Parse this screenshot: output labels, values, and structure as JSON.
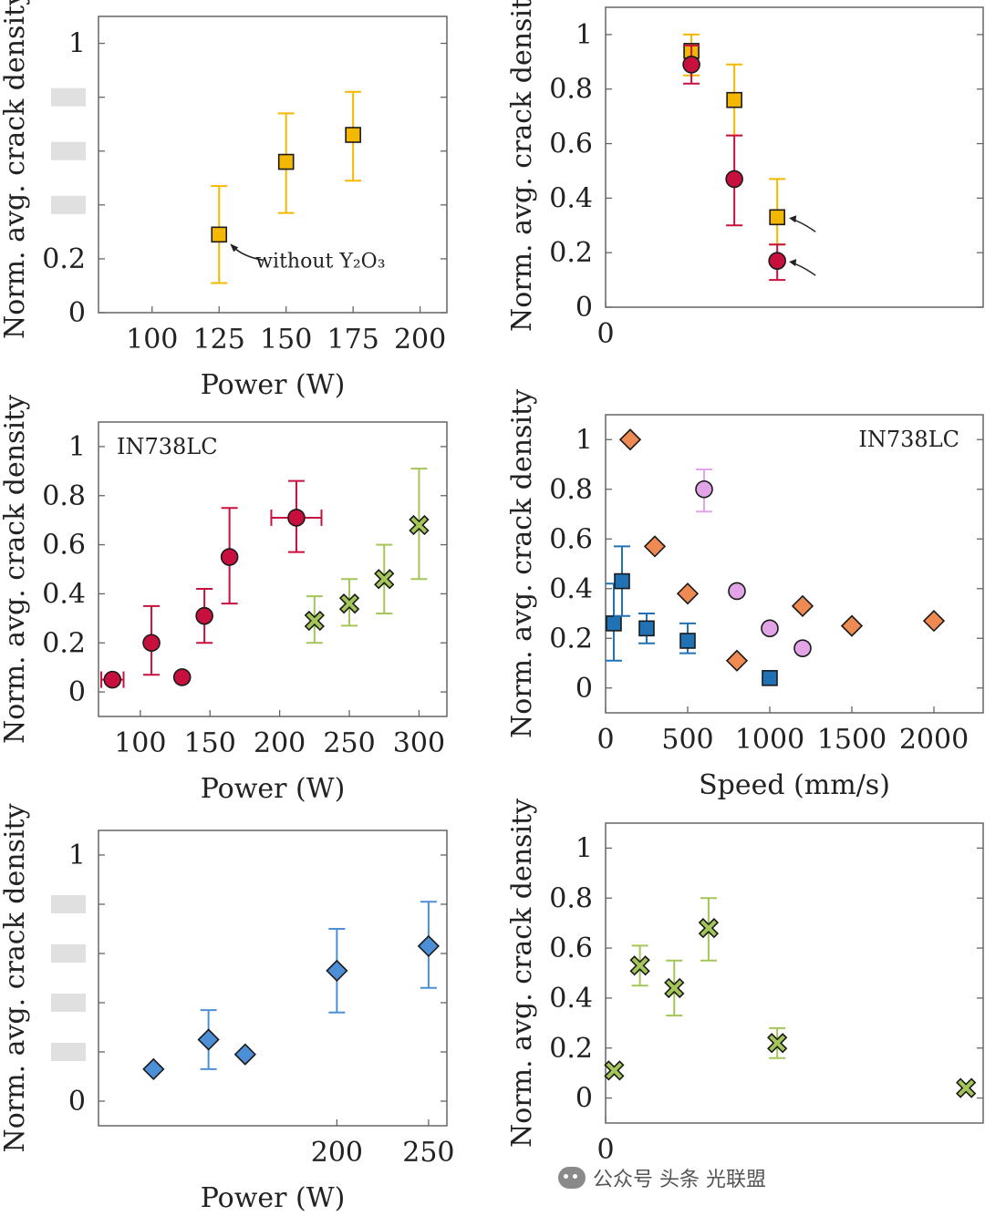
{
  "chart_data": [
    {
      "type": "scatter",
      "ylabel": "Norm. avg. crack density",
      "xlabel": "Power (W)",
      "xticks": [
        "100",
        "125",
        "150",
        "175",
        "200"
      ],
      "yticks": [
        "0",
        "0.2",
        "",
        "",
        "",
        "1"
      ],
      "xlim": [
        80,
        210
      ],
      "ylim": [
        0,
        1.1
      ],
      "annotation": "without Y₂O₃",
      "series": [
        {
          "marker": "square",
          "color": "#f5b800",
          "x": [
            125,
            150,
            175
          ],
          "y": [
            0.29,
            0.56,
            0.66
          ],
          "err": [
            [
              0.11,
              0.47
            ],
            [
              0.37,
              0.74
            ],
            [
              0.49,
              0.82
            ]
          ]
        }
      ]
    },
    {
      "type": "scatter",
      "ylabel": "Norm. avg. crack density",
      "xlabel": "",
      "xticks": [
        "0"
      ],
      "yticks": [
        "0",
        "0.2",
        "0.4",
        "0.6",
        "0.8",
        "1"
      ],
      "xlim": [
        0,
        2200
      ],
      "ylim": [
        0,
        1.1
      ],
      "series": [
        {
          "marker": "square",
          "color": "#f5b800",
          "x": [
            500,
            750,
            1000
          ],
          "y": [
            0.94,
            0.76,
            0.33
          ],
          "err": [
            [
              0.85,
              1.0
            ],
            [
              0.63,
              0.89
            ],
            [
              0.23,
              0.47
            ]
          ]
        },
        {
          "marker": "circle",
          "color": "#c8103e",
          "x": [
            500,
            750,
            1000
          ],
          "y": [
            0.89,
            0.47,
            0.17
          ],
          "err": [
            [
              0.82,
              0.96
            ],
            [
              0.3,
              0.63
            ],
            [
              0.1,
              0.23
            ]
          ]
        }
      ]
    },
    {
      "type": "scatter",
      "ylabel": "Norm. avg. crack density",
      "xlabel": "Power (W)",
      "label": "IN738LC",
      "xticks": [
        "100",
        "150",
        "200",
        "250",
        "300"
      ],
      "yticks": [
        "0",
        "0.2",
        "0.4",
        "0.6",
        "0.8",
        "1"
      ],
      "xlim": [
        70,
        320
      ],
      "ylim": [
        -0.1,
        1.1
      ],
      "series": [
        {
          "marker": "circle",
          "color": "#c8103e",
          "x": [
            80,
            108,
            130,
            146,
            164,
            212
          ],
          "y": [
            0.05,
            0.2,
            0.06,
            0.31,
            0.55,
            0.71
          ],
          "err": [
            [
              0.05,
              0.05
            ],
            [
              0.07,
              0.35
            ],
            [
              0.06,
              0.06
            ],
            [
              0.2,
              0.42
            ],
            [
              0.36,
              0.75
            ],
            [
              0.57,
              0.86
            ]
          ],
          "xerr": [
            [
              72,
              88
            ],
            null,
            null,
            null,
            null,
            [
              194,
              230
            ]
          ]
        },
        {
          "marker": "cross",
          "color": "#a4c659",
          "x": [
            225,
            250,
            275,
            300
          ],
          "y": [
            0.29,
            0.36,
            0.46,
            0.68
          ],
          "err": [
            [
              0.2,
              0.39
            ],
            [
              0.27,
              0.46
            ],
            [
              0.32,
              0.6
            ],
            [
              0.46,
              0.91
            ]
          ]
        }
      ]
    },
    {
      "type": "scatter",
      "ylabel": "Norm. avg. crack density",
      "xlabel": "Speed (mm/s)",
      "label": "IN738LC",
      "xticks": [
        "0",
        "500",
        "1000",
        "1500",
        "2000"
      ],
      "yticks": [
        "0",
        "0.2",
        "0.4",
        "0.6",
        "0.8",
        "1"
      ],
      "xlim": [
        0,
        2300
      ],
      "ylim": [
        -0.1,
        1.1
      ],
      "series": [
        {
          "marker": "diamond",
          "color": "#ef8a52",
          "x": [
            150,
            300,
            500,
            800,
            1200,
            1500,
            2000
          ],
          "y": [
            1.0,
            0.57,
            0.38,
            0.11,
            0.33,
            0.25,
            0.27
          ]
        },
        {
          "marker": "circle",
          "color": "#e2a3e7",
          "x": [
            600,
            800,
            1000,
            1200
          ],
          "y": [
            0.8,
            0.39,
            0.24,
            0.16
          ],
          "err": [
            [
              0.71,
              0.88
            ],
            null,
            null,
            null
          ]
        },
        {
          "marker": "square",
          "color": "#2171b5",
          "x": [
            50,
            100,
            250,
            500,
            1000
          ],
          "y": [
            0.26,
            0.43,
            0.24,
            0.19,
            0.04
          ],
          "err": [
            [
              0.11,
              0.42
            ],
            [
              0.29,
              0.57
            ],
            [
              0.18,
              0.3
            ],
            [
              0.14,
              0.26
            ],
            null
          ]
        }
      ]
    },
    {
      "type": "scatter",
      "ylabel": "Norm. avg. crack density",
      "xlabel": "Power (W)",
      "xticks": [
        "200",
        "250"
      ],
      "yticks": [
        "0",
        "",
        "",
        "",
        "",
        "1"
      ],
      "xlim": [
        70,
        260
      ],
      "ylim": [
        -0.1,
        1.1
      ],
      "series": [
        {
          "marker": "diamond",
          "color": "#4d8fd6",
          "x": [
            100,
            130,
            150,
            200,
            250
          ],
          "y": [
            0.13,
            0.25,
            0.19,
            0.53,
            0.63
          ],
          "err": [
            null,
            [
              0.13,
              0.37
            ],
            null,
            [
              0.36,
              0.7
            ],
            [
              0.46,
              0.81
            ]
          ]
        }
      ]
    },
    {
      "type": "scatter",
      "ylabel": "Norm. avg. crack density",
      "xlabel": "",
      "xticks": [
        "0"
      ],
      "yticks": [
        "0",
        "0.2",
        "0.4",
        "0.6",
        "0.8",
        "1"
      ],
      "xlim": [
        0,
        2200
      ],
      "ylim": [
        -0.1,
        1.1
      ],
      "series": [
        {
          "marker": "cross",
          "color": "#a4c659",
          "x": [
            50,
            200,
            400,
            600,
            1000,
            2100
          ],
          "y": [
            0.11,
            0.53,
            0.44,
            0.68,
            0.22,
            0.04
          ],
          "err": [
            null,
            [
              0.45,
              0.61
            ],
            [
              0.33,
              0.55
            ],
            [
              0.55,
              0.8
            ],
            [
              0.16,
              0.28
            ],
            null
          ]
        }
      ]
    }
  ],
  "watermark": {
    "icon": "wechat-icon",
    "text": "公众号 头条 光联盟"
  }
}
